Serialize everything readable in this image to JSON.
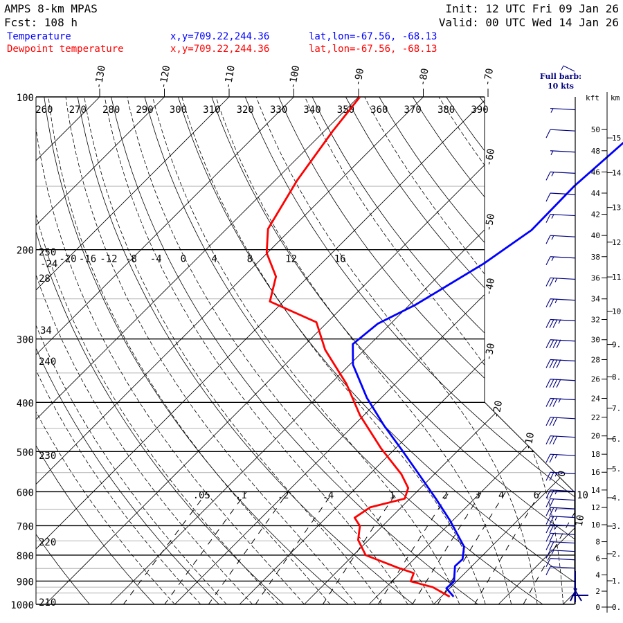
{
  "header": {
    "model": "AMPS 8-km MPAS",
    "forecast": "Fcst:  108 h",
    "init": "Init: 12 UTC Fri 09 Jan 26",
    "valid": "Valid: 00 UTC Wed 14 Jan 26"
  },
  "legend": [
    {
      "name": "Temperature",
      "xy": "x,y=709.22,244.36",
      "latlon": "lat,lon=-67.56, -68.13",
      "color": "#0000ff"
    },
    {
      "name": "Dewpoint temperature",
      "xy": "x,y=709.22,244.36",
      "latlon": "lat,lon=-67.56, -68.13",
      "color": "#ff0000"
    }
  ],
  "barb_legend": {
    "line1": "Full barb:",
    "line2": "10 kts",
    "color": "#000080"
  },
  "height_axis": {
    "kft_title": "kft",
    "km_title": "km"
  },
  "chart_data": {
    "type": "line",
    "subtype": "skew-t log-p",
    "ylabel": "Pressure (hPa)",
    "ylim": [
      1000,
      100
    ],
    "pressure_levels": [
      100,
      200,
      300,
      400,
      500,
      600,
      700,
      800,
      900,
      1000
    ],
    "isotherm_labels_top": [
      -130,
      -120,
      -110,
      -100,
      -90,
      -80,
      -70
    ],
    "isotherm_labels_right": [
      -60,
      -50,
      -40,
      -30,
      -20,
      -10,
      0,
      10
    ],
    "dry_adiabat_labels_top": [
      260,
      270,
      280,
      290,
      300,
      310,
      320,
      330,
      340,
      350,
      360,
      370,
      380,
      390
    ],
    "dry_adiabat_labels_left": [
      250,
      240,
      230,
      220,
      210
    ],
    "moist_adiabat_labels": [
      -24,
      -20,
      -16,
      -12,
      -8,
      -4,
      0,
      4,
      8,
      12,
      16
    ],
    "moist_adiabat_labels_left": [
      "28",
      "34"
    ],
    "mixing_ratio_labels": [
      ".05",
      ".1",
      ".2",
      ".4",
      "1",
      "2",
      "3",
      "4",
      "6",
      "10"
    ],
    "mixing_ratio_values": [
      0.05,
      0.1,
      0.2,
      0.4,
      1,
      2,
      3,
      4,
      6,
      10
    ],
    "series": [
      {
        "name": "Temperature",
        "color": "#0000ff",
        "p": [
          123,
          150,
          183,
          213,
          257,
          280,
          307,
          337,
          392,
          445,
          496,
          554,
          619,
          684,
          770,
          815,
          841,
          901,
          930,
          966
        ],
        "t": [
          -42.0,
          -42.9,
          -42.7,
          -44.9,
          -49.1,
          -52.0,
          -52.7,
          -49.5,
          -42.2,
          -35.2,
          -28.8,
          -22.4,
          -16.0,
          -10.4,
          -4.2,
          -2.5,
          -2.6,
          -0.4,
          -0.5,
          1.9
        ]
      },
      {
        "name": "Dewpoint temperature",
        "color": "#ff0000",
        "p": [
          100,
          117,
          146,
          182,
          203,
          226,
          253,
          278,
          315,
          368,
          424,
          493,
          554,
          590,
          619,
          644,
          675,
          701,
          747,
          800,
          847,
          868,
          901,
          925,
          966
        ],
        "t": [
          -89.8,
          -88.7,
          -86.6,
          -83.6,
          -80.1,
          -75.0,
          -72.1,
          -61.7,
          -56.1,
          -47.5,
          -40.6,
          -32.2,
          -25.1,
          -21.9,
          -20.8,
          -24.8,
          -25.6,
          -23.5,
          -21.6,
          -18.1,
          -11.2,
          -7.9,
          -7.1,
          -2.8,
          1.3
        ]
      }
    ],
    "wind": {
      "units": "kts",
      "kft": [
        52,
        50,
        48,
        46,
        44,
        42,
        40,
        38,
        36,
        34,
        32,
        30,
        28,
        26,
        24,
        22,
        20,
        18,
        16,
        14,
        13,
        12,
        11,
        10,
        9,
        8,
        7,
        6,
        5
      ],
      "speed": [
        5,
        10,
        5,
        15,
        10,
        15,
        15,
        15,
        25,
        25,
        35,
        40,
        40,
        40,
        35,
        30,
        30,
        25,
        25,
        25,
        20,
        25,
        25,
        25,
        20,
        20,
        15,
        10,
        10
      ]
    },
    "kft_ticks": [
      0,
      2,
      4,
      6,
      8,
      10,
      12,
      14,
      16,
      18,
      20,
      22,
      24,
      26,
      28,
      30,
      32,
      34,
      36,
      38,
      40,
      42,
      44,
      46,
      48,
      50
    ],
    "km_ticks": [
      {
        "v": 0,
        "t": "0."
      },
      {
        "v": 1,
        "t": "1."
      },
      {
        "v": 2,
        "t": "2."
      },
      {
        "v": 3,
        "t": "3."
      },
      {
        "v": 4,
        "t": "4."
      },
      {
        "v": 5,
        "t": "5."
      },
      {
        "v": 6,
        "t": "6."
      },
      {
        "v": 7,
        "t": "7."
      },
      {
        "v": 8,
        "t": "8."
      },
      {
        "v": 9,
        "t": "9."
      },
      {
        "v": 10,
        "t": "10."
      },
      {
        "v": 11,
        "t": "11."
      },
      {
        "v": 12,
        "t": "12."
      },
      {
        "v": 13,
        "t": "13."
      },
      {
        "v": 14,
        "t": "14."
      },
      {
        "v": 15,
        "t": "15."
      }
    ]
  }
}
